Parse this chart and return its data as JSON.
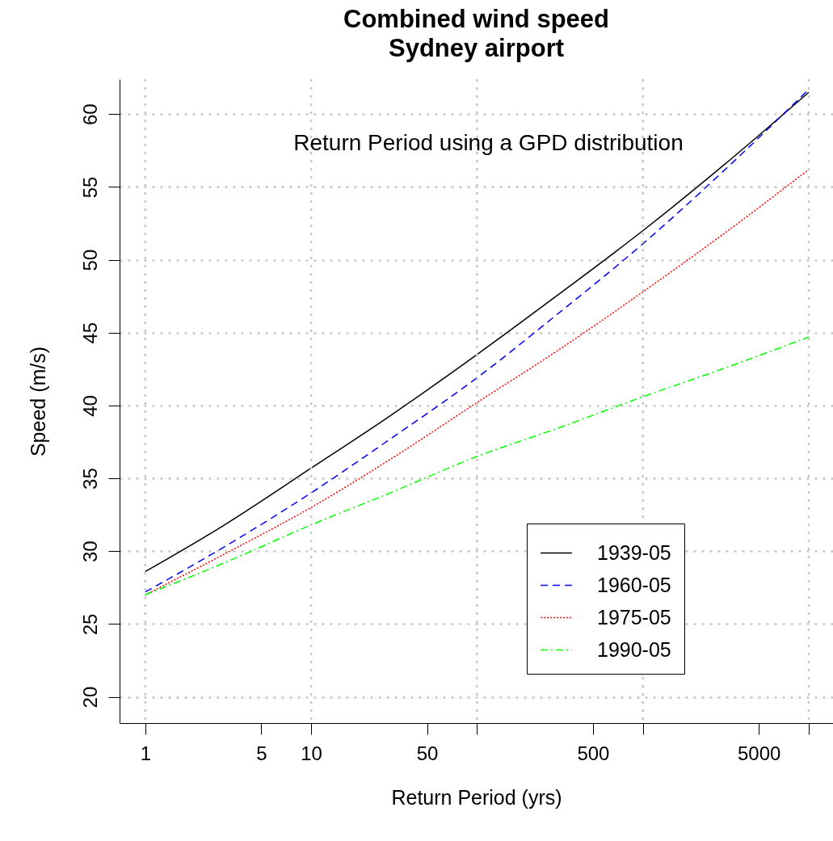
{
  "chart_data": {
    "type": "line",
    "title": "Combined wind speed\nSydney airport",
    "xlabel": "Return Period (yrs)",
    "ylabel": "Speed (m/s)",
    "annotations": [
      "Return Period using a GPD distribution"
    ],
    "x": [
      1,
      3,
      10,
      30,
      100,
      300,
      1000,
      3000,
      10000
    ],
    "series": [
      {
        "name": "1939-05",
        "color": "#000000",
        "line_style": "solid",
        "values": [
          28.6,
          31.8,
          35.7,
          39.3,
          43.5,
          47.5,
          52.0,
          56.4,
          61.5
        ]
      },
      {
        "name": "1960-05",
        "color": "#0000ff",
        "line_style": "dashed",
        "values": [
          27.2,
          30.3,
          34.0,
          37.7,
          41.9,
          46.2,
          51.1,
          56.0,
          61.7
        ]
      },
      {
        "name": "1975-05",
        "color": "#ff0000",
        "line_style": "dotted",
        "values": [
          27.0,
          29.8,
          33.0,
          36.3,
          40.2,
          43.7,
          47.8,
          51.7,
          56.2
        ]
      },
      {
        "name": "1990-05",
        "color": "#00ff00",
        "line_style": "dashdot",
        "values": [
          27.0,
          29.2,
          31.8,
          34.0,
          36.5,
          38.4,
          40.6,
          42.5,
          44.7
        ]
      }
    ],
    "log": "x",
    "xlim": [
      0.7,
      14000
    ],
    "xticks": [
      1,
      5,
      10,
      50,
      {
        "value": 100,
        "label": null
      },
      500,
      {
        "value": 1000,
        "label": null
      },
      5000,
      {
        "value": 10000,
        "label": null
      }
    ],
    "ylim": [
      18.2,
      62.4
    ],
    "yticks": [
      20,
      25,
      30,
      35,
      40,
      45,
      50,
      55,
      60
    ],
    "grid": true,
    "legend": "bottom right"
  }
}
